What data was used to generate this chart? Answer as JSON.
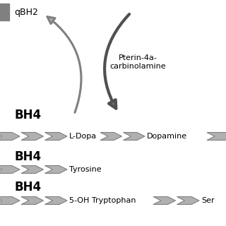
{
  "bg_color": "#ffffff",
  "arrow_fill": "#b0b0b0",
  "arrow_edge": "#808080",
  "dark_fill": "#707070",
  "dark_edge": "#505050",
  "text_color": "#000000",
  "rect_color": "#808080",
  "qBH2_label": "qBH2",
  "pterin_label": "Pterin-4a-\ncarbinolamine",
  "bh4_label": "BH4",
  "row1_labels": [
    "L-Dopa",
    "Dopamine"
  ],
  "row2_labels": [
    "Tyrosine"
  ],
  "row3_labels": [
    "5-OH Tryptophan",
    "Ser"
  ],
  "figsize": [
    3.2,
    3.2
  ],
  "dpi": 100
}
